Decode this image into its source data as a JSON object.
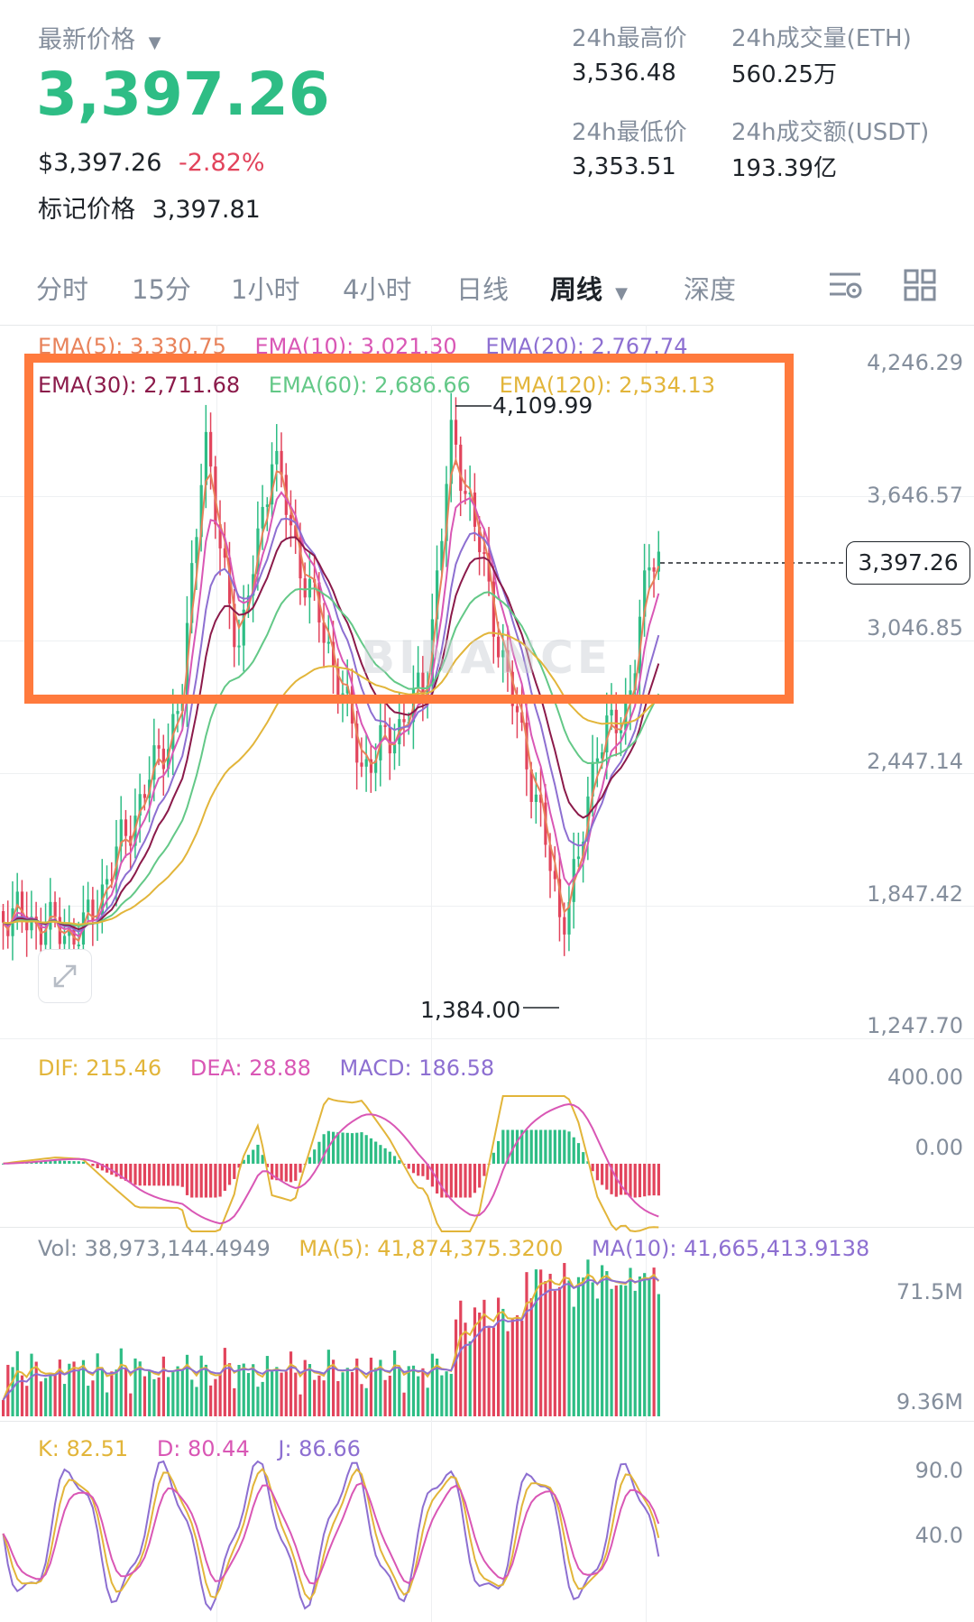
{
  "header": {
    "latest_price_label": "最新价格",
    "price": "3,397.26",
    "usd_price": "$3,397.26",
    "change_pct": "-2.82%",
    "mark_price_label": "标记价格",
    "mark_price": "3,397.81",
    "stats": {
      "high_label": "24h最高价",
      "high": "3,536.48",
      "low_label": "24h最低价",
      "low": "3,353.51",
      "vol_eth_label": "24h成交量(ETH)",
      "vol_eth": "560.25万",
      "vol_usdt_label": "24h成交额(USDT)",
      "vol_usdt": "193.39亿"
    }
  },
  "tabs": [
    "分时",
    "15分",
    "1小时",
    "4小时",
    "日线",
    "周线",
    "深度"
  ],
  "active_tab": "周线",
  "toolbar_icons": [
    "chart-settings-icon",
    "grid-layout-icon"
  ],
  "main_chart": {
    "ema_legend": [
      {
        "text": "EMA(5): 3,330.75",
        "color": "#e8825a"
      },
      {
        "text": "EMA(10): 3,021.30",
        "color": "#d957b5"
      },
      {
        "text": "EMA(20): 2,767.74",
        "color": "#8d6fd1"
      },
      {
        "text": "EMA(30): 2,711.68",
        "color": "#8b1a4a"
      },
      {
        "text": "EMA(60): 2,686.66",
        "color": "#63c887"
      },
      {
        "text": "EMA(120): 2,534.13",
        "color": "#e2b53a"
      }
    ],
    "y_axis": [
      "4,246.29",
      "3,646.57",
      "3,046.85",
      "2,447.14",
      "1,847.42",
      "1,247.70"
    ],
    "high_marker": "4,109.99",
    "low_marker": "1,384.00",
    "current_price_tag": "3,397.26",
    "watermark": "BINANCE"
  },
  "macd": {
    "dif": "DIF: 215.46",
    "dea": "DEA: 28.88",
    "macd": "MACD: 186.58",
    "y_axis": [
      "400.00",
      "0.00"
    ]
  },
  "volume": {
    "vol": "Vol: 38,973,144.4949",
    "ma5": "MA(5): 41,874,375.3200",
    "ma10": "MA(10): 41,665,413.9138",
    "y_axis": [
      "71.5M",
      "9.36M"
    ]
  },
  "kdj": {
    "k": "K: 82.51",
    "d": "D: 80.44",
    "j": "J: 86.66",
    "y_axis": [
      "90.0",
      "40.0"
    ]
  },
  "colors": {
    "up": "#2ebd85",
    "down": "#e2445c",
    "highlight_box": "#ff7a3d"
  }
}
